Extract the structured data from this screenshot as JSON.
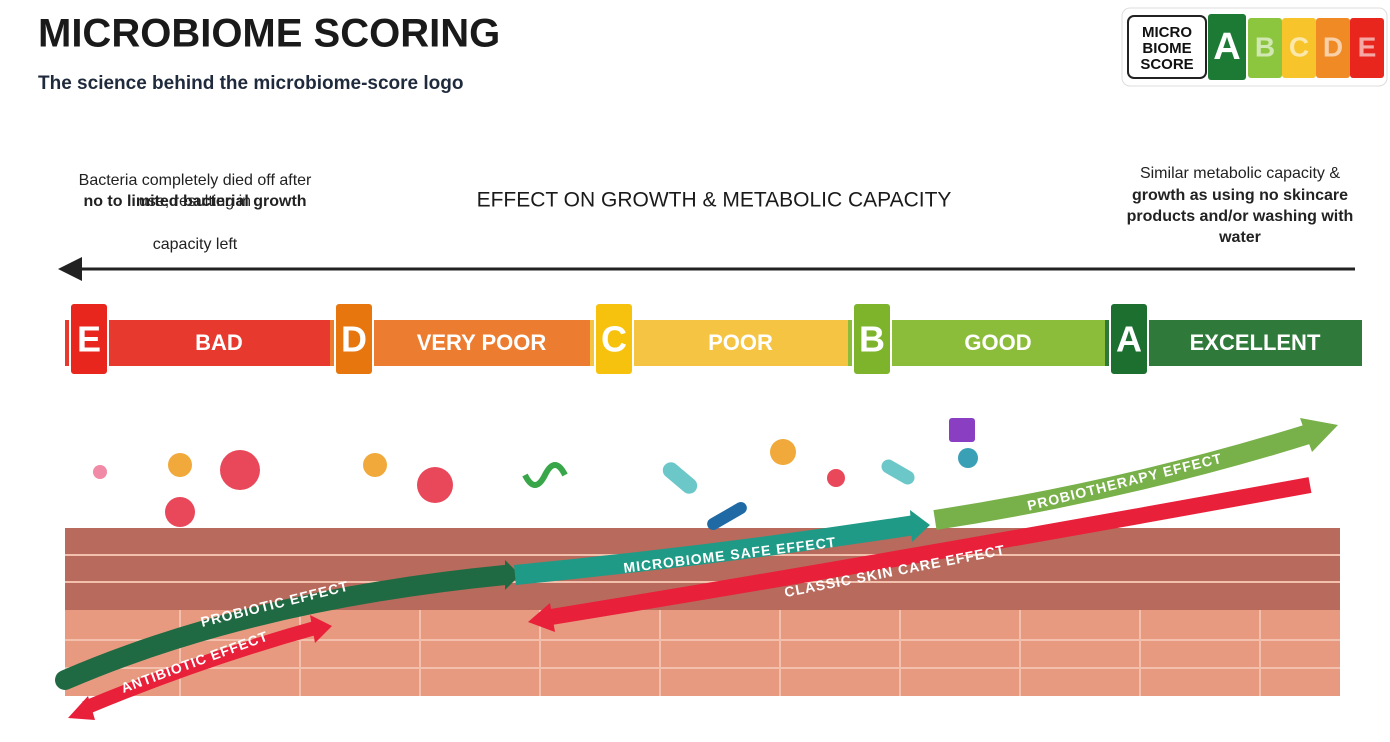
{
  "header": {
    "title": "MICROBIOME SCORING",
    "subtitle": "The science behind the microbiome-score logo"
  },
  "logo": {
    "lines": [
      "MICRO",
      "BIOME",
      "SCORE"
    ],
    "letters": [
      "A",
      "B",
      "C",
      "D",
      "E"
    ]
  },
  "axis_label": "EFFECT ON GROWTH & METABOLIC CAPACITY",
  "left_note": {
    "regular_start": "Bacteria completely died off after use, resulting in",
    "bold": "no to limited bacterial growth",
    "regular_end": "capacity left"
  },
  "right_note": {
    "regular": "Similar metabolic capacity &",
    "bold": "growth as using no skincare products and/or washing with water"
  },
  "scale": {
    "segments": [
      {
        "letter": "E",
        "label": "BAD"
      },
      {
        "letter": "D",
        "label": "VERY POOR"
      },
      {
        "letter": "C",
        "label": "POOR"
      },
      {
        "letter": "B",
        "label": "GOOD"
      },
      {
        "letter": "A",
        "label": "EXCELLENT"
      }
    ]
  },
  "effects": {
    "probiotherapy": "PROBIOTHERAPY EFFECT",
    "microbiome_safe": "MICROBIOME SAFE EFFECT",
    "classic": "CLASSIC SKIN CARE EFFECT",
    "probiotic": "PROBIOTIC EFFECT",
    "antibiotic": "ANTIBIOTIC EFFECT"
  }
}
